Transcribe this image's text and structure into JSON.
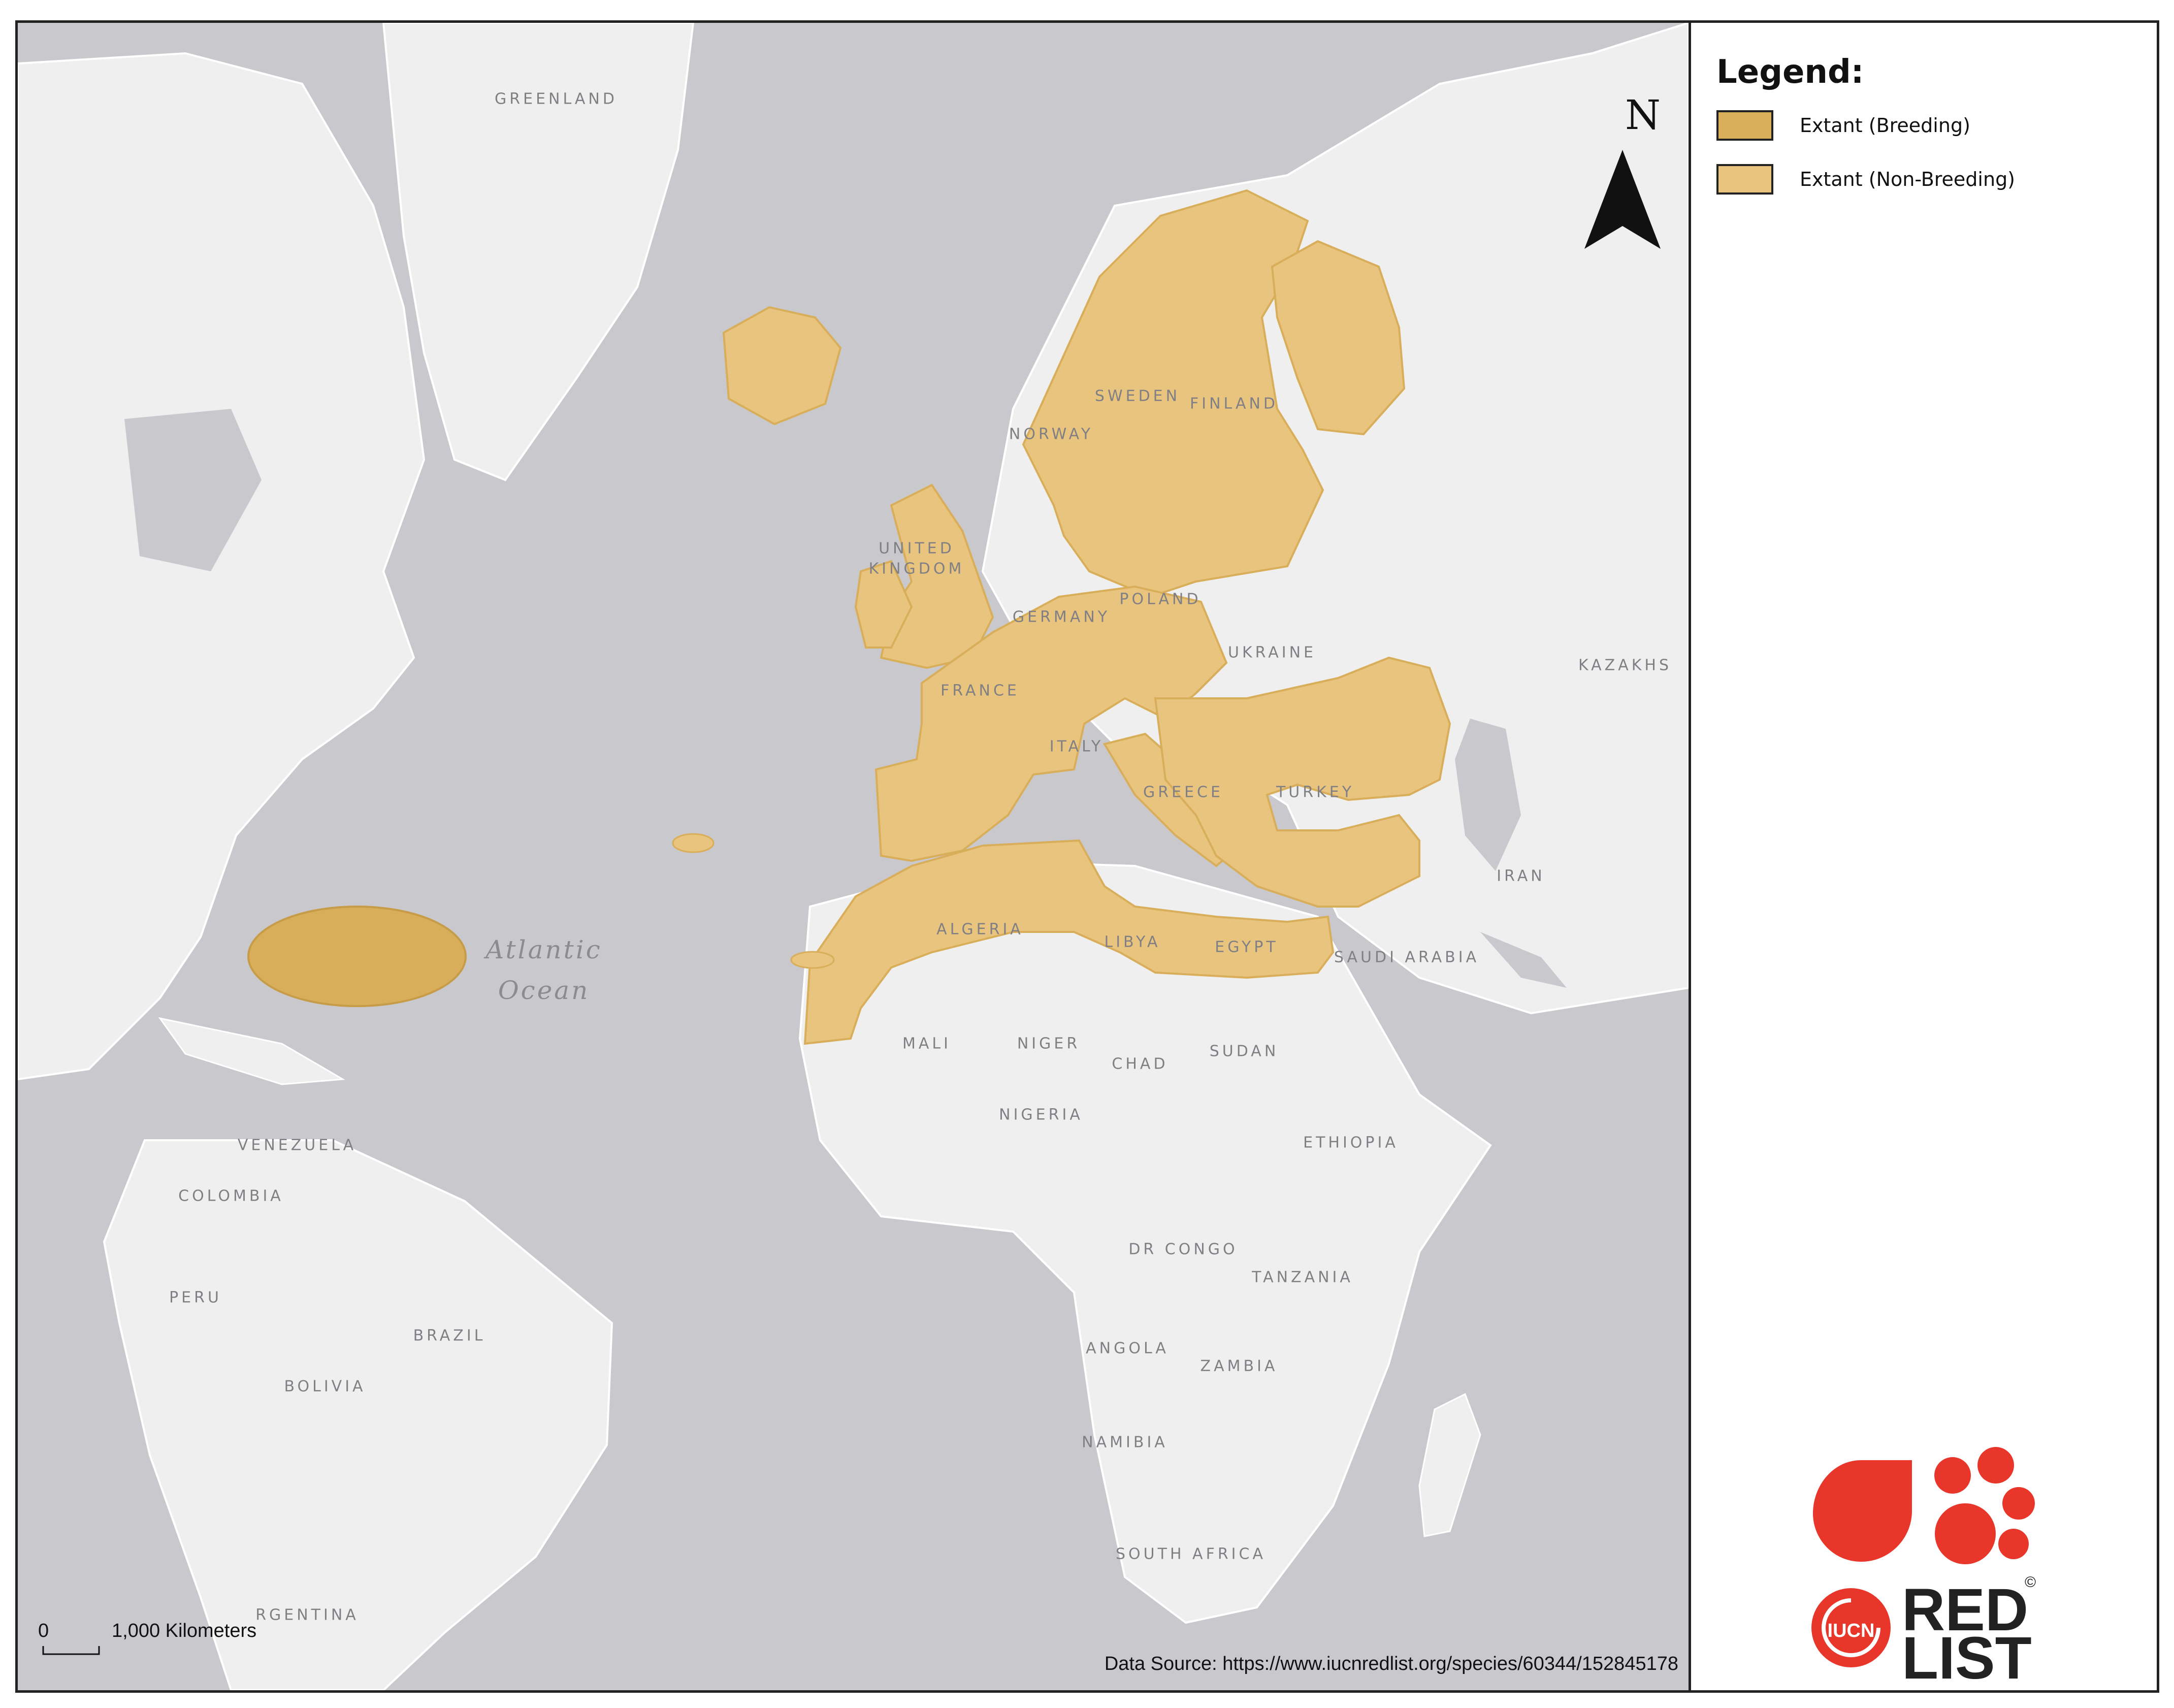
{
  "map": {
    "ocean_label": [
      "Atlantic",
      "Ocean"
    ],
    "place_labels": [
      "GREENLAND",
      "SWEDEN",
      "FINLAND",
      "NORWAY",
      "UNITED",
      "KINGDOM",
      "GERMANY",
      "POLAND",
      "UKRAINE",
      "KAZAKHS",
      "FRANCE",
      "ITALY",
      "GREECE",
      "TURKEY",
      "IRAN",
      "ALGERIA",
      "LIBYA",
      "EGYPT",
      "SAUDI ARABIA",
      "MALI",
      "NIGER",
      "CHAD",
      "SUDAN",
      "NIGERIA",
      "ETHIOPIA",
      "VENEZUELA",
      "COLOMBIA",
      "DR CONGO",
      "TANZANIA",
      "PERU",
      "BRAZIL",
      "BOLIVIA",
      "ANGOLA",
      "ZAMBIA",
      "NAMIBIA",
      "SOUTH AFRICA",
      "RGENTINA"
    ],
    "north_arrow_label": "N",
    "scale_bar": {
      "start": "0",
      "end": "1,000 Kilometers"
    },
    "data_source": "Data Source: https://www.iucnredlist.org/species/60344/152845178"
  },
  "colors": {
    "breeding": "#d9ae5a",
    "non_breeding": "#e8c47e",
    "land": "#efeff0",
    "water": "#c9c9cd",
    "logo_red": "#e8362a"
  },
  "legend": {
    "title": "Legend:",
    "items": [
      {
        "label": "Extant (Breeding)",
        "color": "#d9ae5a"
      },
      {
        "label": "Extant (Non-Breeding)",
        "color": "#e8c47e"
      }
    ]
  },
  "logo": {
    "org": "IUCN",
    "line1": "RED",
    "line2": "LIST",
    "mark": "©"
  }
}
